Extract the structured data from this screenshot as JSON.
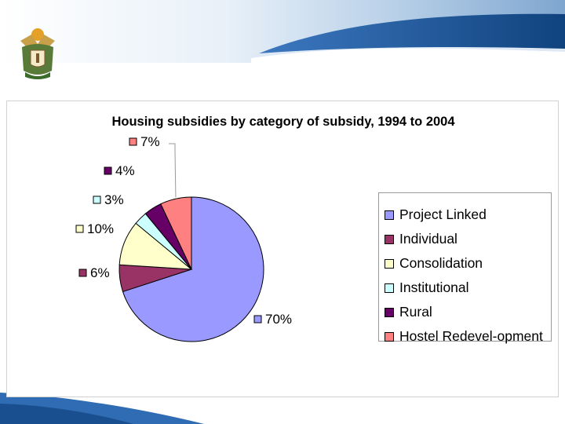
{
  "chart_data": {
    "type": "pie",
    "title": "Housing subsidies by category of subsidy, 1994 to 2004",
    "legend_position": "right",
    "slices": [
      {
        "name": "Project Linked",
        "value": 70,
        "label": "70%",
        "color": "#9999ff"
      },
      {
        "name": "Individual",
        "value": 6,
        "label": "6%",
        "color": "#993366"
      },
      {
        "name": "Consolidation",
        "value": 10,
        "label": "10%",
        "color": "#ffffcc"
      },
      {
        "name": "Institutional",
        "value": 3,
        "label": "3%",
        "color": "#ccffff"
      },
      {
        "name": "Rural",
        "value": 4,
        "label": "4%",
        "color": "#660066"
      },
      {
        "name": "Hostel Redevel-opment",
        "value": 7,
        "label": "7%",
        "color": "#ff8080"
      }
    ]
  },
  "header": {
    "logo": "south-africa-coat-of-arms",
    "banner_color": "#1f5a9e"
  }
}
